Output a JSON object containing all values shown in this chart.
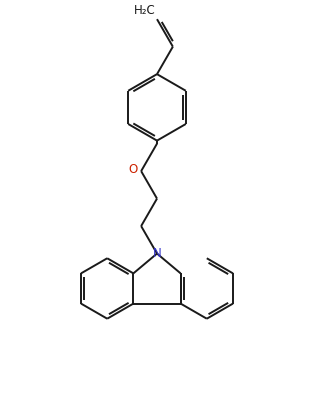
{
  "background_color": "#ffffff",
  "bond_color": "#1a1a1a",
  "N_color": "#3333cc",
  "O_color": "#cc2200",
  "fig_width": 3.14,
  "fig_height": 4.0,
  "dpi": 100,
  "H2C_label": "H₂C",
  "N_label": "N",
  "O_label": "O",
  "bond_lw": 1.4,
  "font_size": 8.5
}
